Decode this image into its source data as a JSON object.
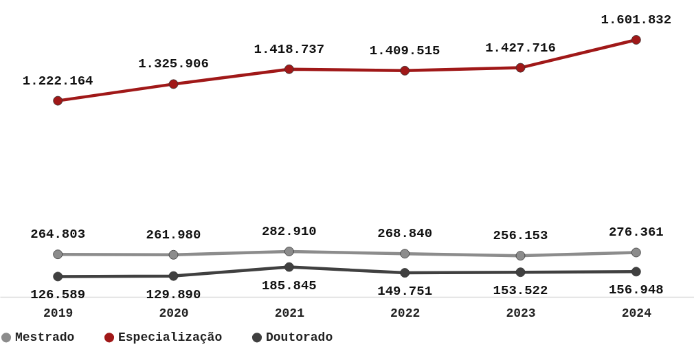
{
  "chart_data": {
    "type": "line",
    "categories": [
      "2019",
      "2020",
      "2021",
      "2022",
      "2023",
      "2024"
    ],
    "ylim": [
      0,
      1850000
    ],
    "tick_labels": "x",
    "grid": false,
    "legend": "bottom",
    "marker": "circle",
    "line_style": "solid",
    "series": [
      {
        "name": "Mestrado",
        "color": "#8c8c8c",
        "values": [
          264803,
          261980,
          282910,
          268840,
          256153,
          276361
        ],
        "value_labels": [
          "264.803",
          "261.980",
          "282.910",
          "268.840",
          "256.153",
          "276.361"
        ]
      },
      {
        "name": "Especialização",
        "color": "#a01818",
        "values": [
          1222164,
          1325906,
          1418737,
          1409515,
          1427716,
          1601832
        ],
        "value_labels": [
          "1.222.164",
          "1.325.906",
          "1.418.737",
          "1.409.515",
          "1.427.716",
          "1.601.832"
        ]
      },
      {
        "name": "Doutorado",
        "color": "#404040",
        "values": [
          126589,
          129890,
          185845,
          149751,
          153522,
          156948
        ],
        "value_labels": [
          "126.589",
          "129.890",
          "185.845",
          "149.751",
          "153.522",
          "156.948"
        ]
      }
    ]
  }
}
